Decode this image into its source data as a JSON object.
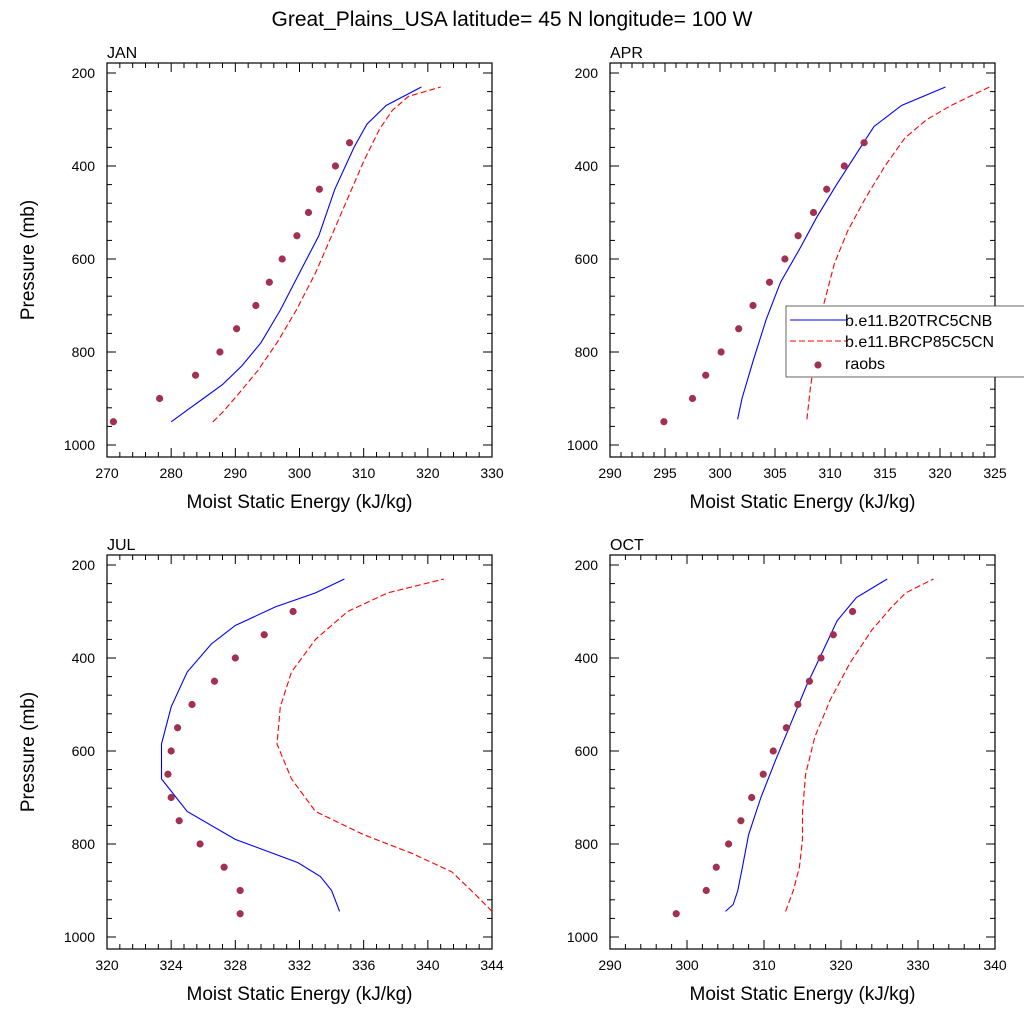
{
  "figure": {
    "title": "Great_Plains_USA  latitude= 45 N longitude= 100 W"
  },
  "legend": {
    "placement": "right of APR panel, overlapping plot edge",
    "entries": [
      {
        "label": "b.e11.B20TRC5CNB",
        "style": "solid line",
        "color": "#0000ff"
      },
      {
        "label": "b.e11.BRCP85C5CN",
        "style": "dashed line",
        "color": "#ff0000"
      },
      {
        "label": "raobs",
        "style": "dot",
        "color": "#a23050"
      }
    ]
  },
  "colors": {
    "b20trc": "#0000ff",
    "brcp85": "#ff0000",
    "raobs": "#a23050"
  },
  "chart_data": [
    {
      "type": "line",
      "title": "JAN",
      "xlabel": "Moist Static Energy (kJ/kg)",
      "ylabel": "Pressure (mb)",
      "xlim": [
        270,
        330
      ],
      "ylim": [
        1000,
        200
      ],
      "y_reversed": true,
      "xticks": [
        270,
        280,
        290,
        300,
        310,
        320,
        330
      ],
      "yticks": [
        200,
        400,
        600,
        800,
        1000
      ],
      "series": [
        {
          "name": "b.e11.B20TRC5CNB",
          "style": "solid",
          "x": [
            280.0,
            282.0,
            285.0,
            288.0,
            291.0,
            294.0,
            297.0,
            300.0,
            303.0,
            305.5,
            308.5,
            310.5,
            313.5,
            319.0
          ],
          "y": [
            950,
            930,
            900,
            870,
            830,
            780,
            710,
            630,
            550,
            450,
            360,
            310,
            270,
            230
          ]
        },
        {
          "name": "b.e11.BRCP85C5CN",
          "style": "dashed",
          "x": [
            286.5,
            288.0,
            290.5,
            293.5,
            296.5,
            299.5,
            302.5,
            305.0,
            307.5,
            310.0,
            312.5,
            314.5,
            317.0,
            322.0
          ],
          "y": [
            950,
            930,
            890,
            840,
            780,
            710,
            630,
            550,
            470,
            390,
            320,
            280,
            250,
            230
          ]
        },
        {
          "name": "raobs",
          "style": "markers",
          "x": [
            271.0,
            278.2,
            283.8,
            287.6,
            290.2,
            293.2,
            295.3,
            297.3,
            299.6,
            301.4,
            303.1,
            305.6,
            307.8
          ],
          "y": [
            950,
            900,
            850,
            800,
            750,
            700,
            650,
            600,
            550,
            500,
            450,
            400,
            350
          ]
        }
      ]
    },
    {
      "type": "line",
      "title": "APR",
      "xlabel": "Moist Static Energy (kJ/kg)",
      "ylabel": "",
      "xlim": [
        290,
        325
      ],
      "ylim": [
        1000,
        200
      ],
      "y_reversed": true,
      "xticks": [
        290,
        295,
        300,
        305,
        310,
        315,
        320,
        325
      ],
      "yticks": [
        200,
        400,
        600,
        800,
        1000
      ],
      "series": [
        {
          "name": "b.e11.B20TRC5CNB",
          "style": "solid",
          "x": [
            301.6,
            302.0,
            303.0,
            304.2,
            305.5,
            307.2,
            308.8,
            310.6,
            312.5,
            314.0,
            316.5,
            320.5
          ],
          "y": [
            945,
            900,
            820,
            730,
            650,
            580,
            510,
            440,
            370,
            315,
            270,
            230
          ]
        },
        {
          "name": "b.e11.BRCP85C5CN",
          "style": "dashed",
          "x": [
            307.9,
            308.2,
            308.7,
            309.4,
            310.4,
            311.6,
            313.2,
            315.0,
            316.8,
            318.8,
            321.0,
            324.5
          ],
          "y": [
            945,
            880,
            800,
            700,
            610,
            540,
            470,
            400,
            340,
            300,
            270,
            230
          ]
        },
        {
          "name": "raobs",
          "style": "markers",
          "x": [
            294.9,
            297.5,
            298.7,
            300.1,
            301.7,
            303.0,
            304.5,
            305.9,
            307.1,
            308.5,
            309.7,
            311.3,
            313.1
          ],
          "y": [
            950,
            900,
            850,
            800,
            750,
            700,
            650,
            600,
            550,
            500,
            450,
            400,
            350
          ]
        }
      ]
    },
    {
      "type": "line",
      "title": "JUL",
      "xlabel": "Moist Static Energy (kJ/kg)",
      "ylabel": "Pressure (mb)",
      "xlim": [
        320,
        344
      ],
      "ylim": [
        1000,
        200
      ],
      "y_reversed": true,
      "xticks": [
        320,
        324,
        328,
        332,
        336,
        340,
        344
      ],
      "yticks": [
        200,
        400,
        600,
        800,
        1000
      ],
      "series": [
        {
          "name": "b.e11.B20TRC5CNB",
          "style": "solid",
          "x": [
            334.5,
            334.0,
            333.3,
            331.9,
            328.0,
            325.0,
            323.4,
            323.4,
            324.0,
            325.0,
            326.5,
            328.0,
            330.5,
            333.0,
            334.8
          ],
          "y": [
            945,
            900,
            870,
            840,
            790,
            730,
            660,
            585,
            505,
            430,
            370,
            330,
            290,
            260,
            230
          ]
        },
        {
          "name": "b.e11.BRCP85C5CN",
          "style": "dashed",
          "x": [
            344.0,
            343.0,
            341.5,
            339.0,
            336.0,
            333.0,
            331.5,
            330.6,
            330.8,
            331.5,
            333.0,
            335.0,
            337.5,
            341.0
          ],
          "y": [
            945,
            910,
            860,
            820,
            780,
            730,
            660,
            585,
            505,
            430,
            360,
            300,
            260,
            230
          ]
        },
        {
          "name": "raobs",
          "style": "markers",
          "x": [
            328.3,
            328.3,
            327.3,
            325.8,
            324.5,
            324.0,
            323.8,
            324.0,
            324.4,
            325.3,
            326.7,
            328.0,
            329.8,
            331.6
          ],
          "y": [
            950,
            900,
            850,
            800,
            750,
            700,
            650,
            600,
            550,
            500,
            450,
            400,
            350,
            300
          ]
        }
      ]
    },
    {
      "type": "line",
      "title": "OCT",
      "xlabel": "Moist Static Energy (kJ/kg)",
      "ylabel": "",
      "xlim": [
        290,
        340
      ],
      "ylim": [
        1000,
        200
      ],
      "y_reversed": true,
      "xticks": [
        290,
        300,
        310,
        320,
        330,
        340
      ],
      "yticks": [
        200,
        400,
        600,
        800,
        1000
      ],
      "series": [
        {
          "name": "b.e11.B20TRC5CNB",
          "style": "solid",
          "x": [
            305.0,
            306.0,
            306.6,
            307.2,
            308.0,
            309.6,
            311.5,
            313.5,
            315.5,
            317.5,
            319.5,
            322.0,
            326.0
          ],
          "y": [
            945,
            930,
            900,
            850,
            780,
            700,
            620,
            540,
            460,
            390,
            320,
            270,
            230
          ]
        },
        {
          "name": "b.e11.BRCP85C5CN",
          "style": "dashed",
          "x": [
            312.8,
            313.8,
            314.6,
            315.0,
            315.0,
            315.4,
            316.6,
            318.6,
            321.2,
            324.0,
            326.6,
            328.4,
            332.0
          ],
          "y": [
            945,
            900,
            850,
            790,
            730,
            650,
            570,
            490,
            410,
            340,
            290,
            260,
            230
          ]
        },
        {
          "name": "raobs",
          "style": "markers",
          "x": [
            298.6,
            302.5,
            303.8,
            305.4,
            307.0,
            308.4,
            309.9,
            311.2,
            312.9,
            314.4,
            315.9,
            317.4,
            319.0,
            321.5
          ],
          "y": [
            950,
            900,
            850,
            800,
            750,
            700,
            650,
            600,
            550,
            500,
            450,
            400,
            350,
            300
          ]
        }
      ]
    }
  ]
}
